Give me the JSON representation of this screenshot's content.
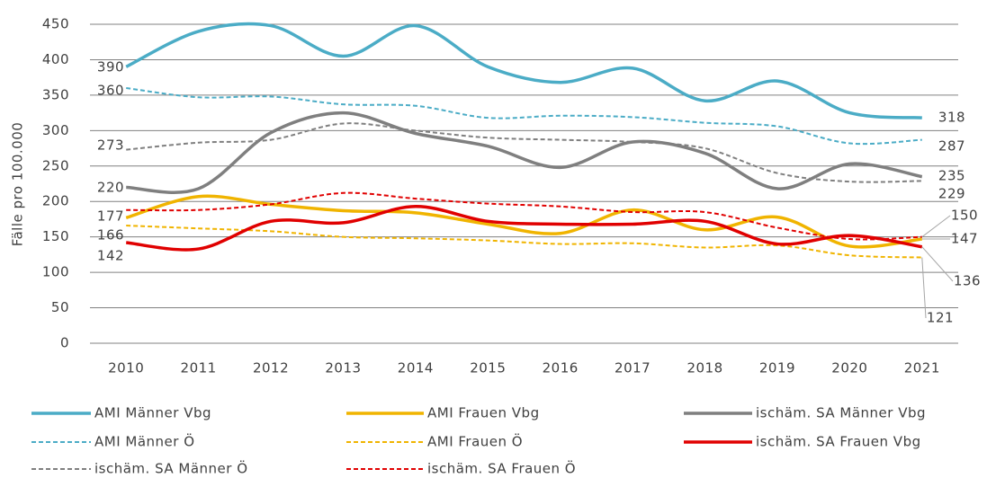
{
  "chart_data": {
    "type": "line",
    "y_label": "Fälle pro 100.000",
    "categories": [
      "2010",
      "2011",
      "2012",
      "2013",
      "2014",
      "2015",
      "2016",
      "2017",
      "2018",
      "2019",
      "2020",
      "2021"
    ],
    "ylim": [
      0,
      450
    ],
    "yticks": [
      0,
      50,
      100,
      150,
      200,
      250,
      300,
      350,
      400,
      450
    ],
    "grid": true,
    "series": [
      {
        "name": "AMI Männer Vbg",
        "color": "#4bacc6",
        "dash": false,
        "values": [
          390,
          440,
          448,
          405,
          448,
          390,
          368,
          388,
          342,
          370,
          325,
          318
        ]
      },
      {
        "name": "AMI Frauen Vbg",
        "color": "#f0b400",
        "dash": false,
        "values": [
          177,
          207,
          196,
          187,
          184,
          168,
          155,
          188,
          160,
          178,
          137,
          147
        ]
      },
      {
        "name": "ischäm. SA Männer Vbg",
        "color": "#7f7f7f",
        "dash": false,
        "values": [
          220,
          218,
          297,
          325,
          296,
          278,
          248,
          284,
          268,
          218,
          253,
          235
        ]
      },
      {
        "name": "AMI Männer Ö",
        "color": "#4bacc6",
        "dash": true,
        "values": [
          360,
          347,
          348,
          337,
          335,
          318,
          321,
          319,
          311,
          306,
          282,
          287
        ]
      },
      {
        "name": "AMI Frauen Ö",
        "color": "#f0b400",
        "dash": true,
        "values": [
          166,
          162,
          158,
          150,
          148,
          145,
          140,
          141,
          135,
          138,
          124,
          121
        ]
      },
      {
        "name": "ischäm. SA Frauen Vbg",
        "color": "#e00000",
        "dash": false,
        "values": [
          142,
          133,
          172,
          170,
          193,
          172,
          168,
          168,
          172,
          140,
          152,
          136
        ]
      },
      {
        "name": "ischäm. SA Männer Ö",
        "color": "#7f7f7f",
        "dash": true,
        "values": [
          273,
          283,
          287,
          310,
          300,
          290,
          287,
          284,
          275,
          240,
          228,
          229
        ]
      },
      {
        "name": "ischäm. SA Frauen Ö",
        "color": "#e00000",
        "dash": true,
        "values": [
          188,
          188,
          196,
          212,
          204,
          197,
          193,
          185,
          185,
          163,
          147,
          150
        ]
      }
    ]
  }
}
